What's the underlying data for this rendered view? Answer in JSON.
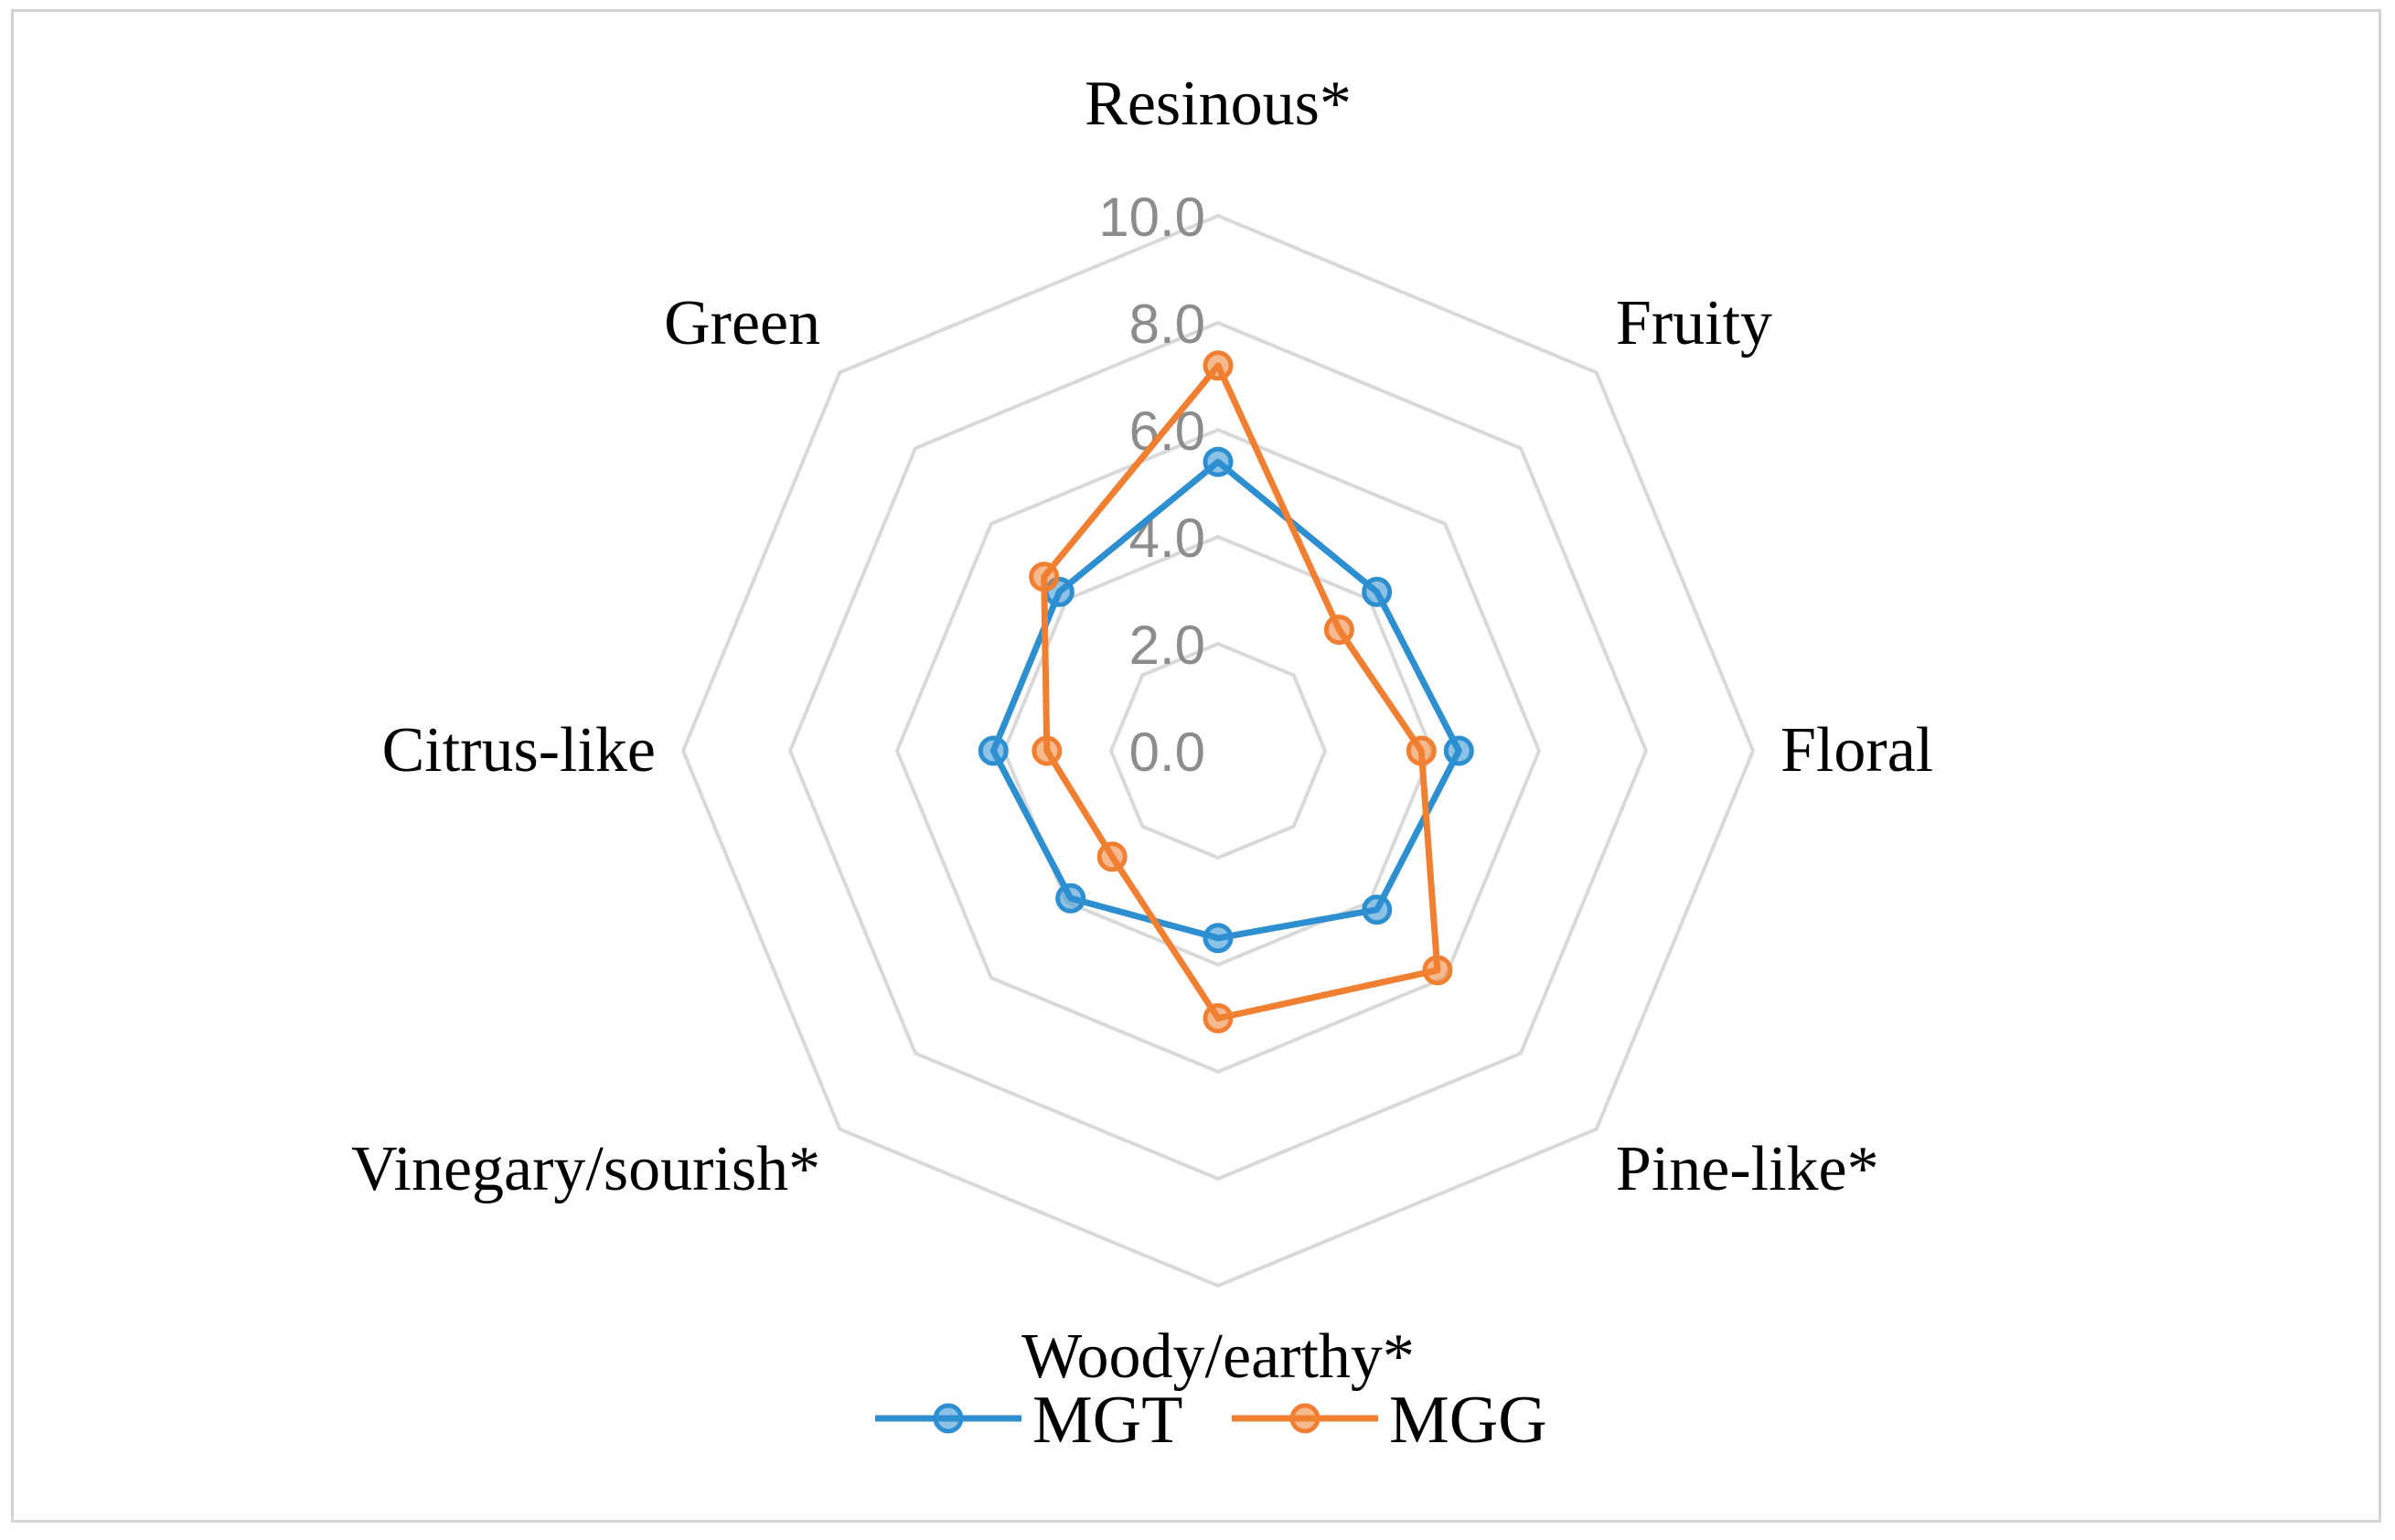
{
  "chart_data": {
    "type": "radar",
    "title": "",
    "axes": [
      "Resinous*",
      "Fruity",
      "Floral",
      "Pine-like*",
      "Woody/earthy*",
      "Vinegary/sourish*",
      "Citrus-like",
      "Green"
    ],
    "ticks": [
      "0.0",
      "2.0",
      "4.0",
      "6.0",
      "8.0",
      "10.0"
    ],
    "range": [
      0,
      10
    ],
    "grid": true,
    "legend_position": "bottom",
    "series": [
      {
        "name": "MGT",
        "color": "#2e8fd0",
        "values": [
          5.4,
          4.2,
          4.5,
          4.2,
          3.5,
          3.9,
          4.2,
          4.2
        ]
      },
      {
        "name": "MGG",
        "color": "#f07f32",
        "values": [
          7.2,
          3.2,
          3.8,
          5.8,
          5.0,
          2.8,
          3.2,
          4.6
        ]
      }
    ]
  }
}
